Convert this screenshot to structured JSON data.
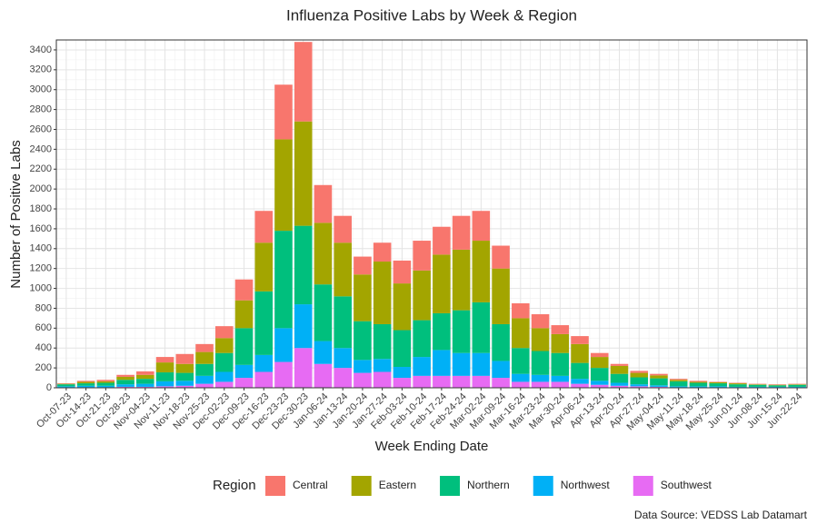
{
  "chart_data": {
    "type": "stacked_bar",
    "title": "Influenza Positive Labs by Week & Region",
    "x_label": "Week Ending Date",
    "y_label": "Number of Positive Labs",
    "legend_title": "Region",
    "source": "Data Source: VEDSS Lab Datamart",
    "categories": [
      "Oct-07-23",
      "Oct-14-23",
      "Oct-21-23",
      "Oct-28-23",
      "Nov-04-23",
      "Nov-11-23",
      "Nov-18-23",
      "Nov-25-23",
      "Dec-02-23",
      "Dec-09-23",
      "Dec-16-23",
      "Dec-23-23",
      "Dec-30-23",
      "Jan-06-24",
      "Jan-13-24",
      "Jan-20-24",
      "Jan-27-24",
      "Feb-03-24",
      "Feb-10-24",
      "Feb-17-24",
      "Feb-24-24",
      "Mar-02-24",
      "Mar-09-24",
      "Mar-16-24",
      "Mar-23-24",
      "Mar-30-24",
      "Apr-06-24",
      "Apr-13-24",
      "Apr-20-24",
      "Apr-27-24",
      "May-04-24",
      "May-11-24",
      "May-18-24",
      "May-25-24",
      "Jun-01-24",
      "Jun-08-24",
      "Jun-15-24",
      "Jun-22-24"
    ],
    "series": [
      {
        "name": "Central",
        "color": "#f8766d",
        "values": [
          5,
          10,
          15,
          20,
          35,
          55,
          100,
          80,
          120,
          210,
          320,
          550,
          800,
          380,
          270,
          180,
          190,
          230,
          300,
          280,
          340,
          300,
          230,
          150,
          140,
          90,
          80,
          40,
          20,
          20,
          15,
          10,
          10,
          5,
          5,
          5,
          5,
          5
        ]
      },
      {
        "name": "Eastern",
        "color": "#a3a500",
        "values": [
          5,
          15,
          15,
          30,
          40,
          100,
          90,
          120,
          150,
          280,
          490,
          920,
          1050,
          620,
          540,
          470,
          630,
          470,
          500,
          590,
          610,
          620,
          560,
          300,
          230,
          190,
          190,
          110,
          80,
          45,
          30,
          15,
          10,
          10,
          10,
          5,
          5,
          5
        ]
      },
      {
        "name": "Northern",
        "color": "#00bf7d",
        "values": [
          20,
          25,
          30,
          45,
          50,
          90,
          80,
          120,
          190,
          370,
          640,
          980,
          790,
          570,
          520,
          390,
          350,
          370,
          370,
          370,
          430,
          510,
          370,
          260,
          240,
          230,
          160,
          130,
          90,
          70,
          70,
          50,
          35,
          30,
          25,
          20,
          15,
          20
        ]
      },
      {
        "name": "Northwest",
        "color": "#00b0f6",
        "values": [
          10,
          15,
          15,
          25,
          30,
          50,
          50,
          80,
          100,
          130,
          170,
          340,
          440,
          230,
          200,
          130,
          130,
          110,
          190,
          260,
          230,
          230,
          170,
          80,
          70,
          60,
          50,
          40,
          30,
          20,
          15,
          10,
          10,
          10,
          5,
          5,
          5,
          5
        ]
      },
      {
        "name": "Southwest",
        "color": "#e76bf3",
        "values": [
          5,
          5,
          5,
          10,
          10,
          15,
          20,
          40,
          60,
          100,
          160,
          260,
          400,
          240,
          200,
          150,
          160,
          100,
          120,
          120,
          120,
          120,
          100,
          60,
          60,
          60,
          40,
          30,
          20,
          15,
          10,
          5,
          5,
          5,
          5,
          5,
          5,
          5
        ]
      }
    ],
    "ylim": [
      0,
      3500
    ],
    "yticks": [
      0,
      200,
      400,
      600,
      800,
      1000,
      1200,
      1400,
      1600,
      1800,
      2000,
      2200,
      2400,
      2600,
      2800,
      3000,
      3200,
      3400
    ],
    "grid": true
  }
}
